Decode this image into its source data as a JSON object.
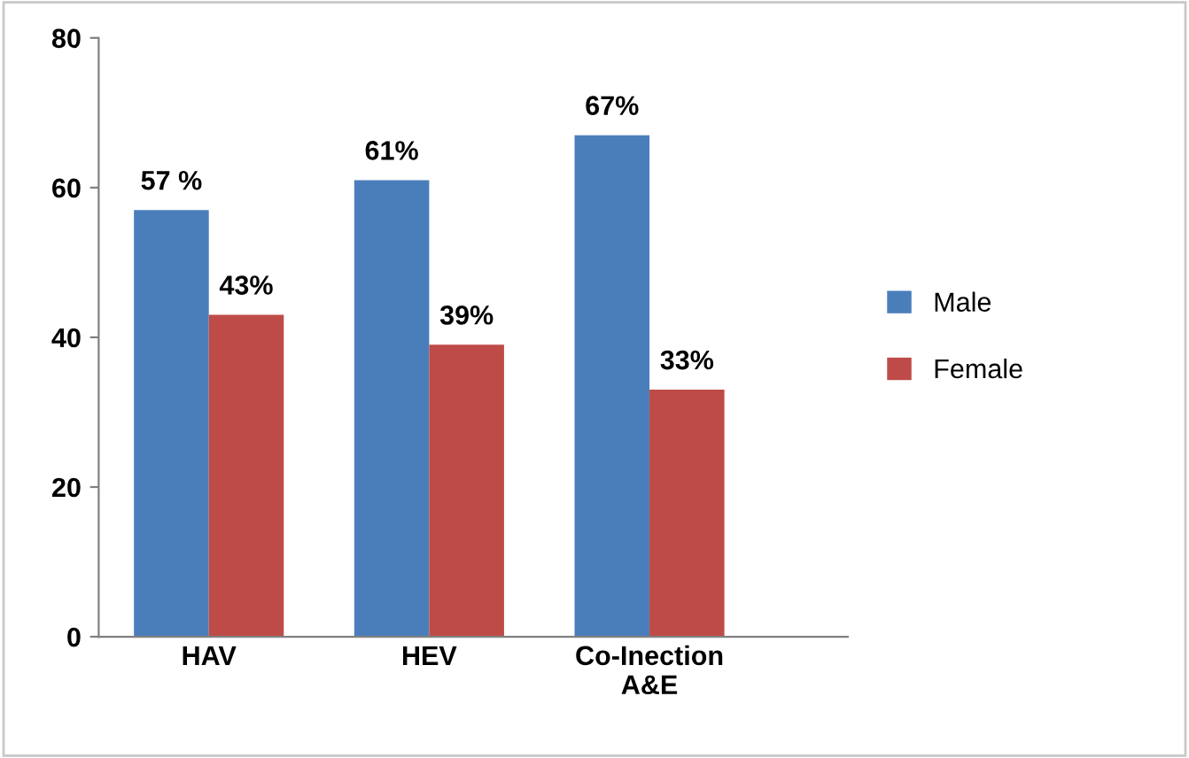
{
  "chart_data": {
    "type": "bar",
    "categories": [
      "HAV",
      "HEV",
      "Co-Inection\nA&E"
    ],
    "series": [
      {
        "name": "Male",
        "color": "#4a7ebb",
        "values": [
          57,
          61,
          67
        ],
        "value_labels": [
          "57 %",
          "61%",
          "67%"
        ]
      },
      {
        "name": "Female",
        "color": "#be4b48",
        "values": [
          43,
          39,
          33
        ],
        "value_labels": [
          "43%",
          "39%",
          "33%"
        ]
      }
    ],
    "ylim": [
      0,
      80
    ],
    "yticks": [
      0,
      20,
      40,
      60,
      80
    ],
    "grid": false,
    "legend": "right"
  }
}
